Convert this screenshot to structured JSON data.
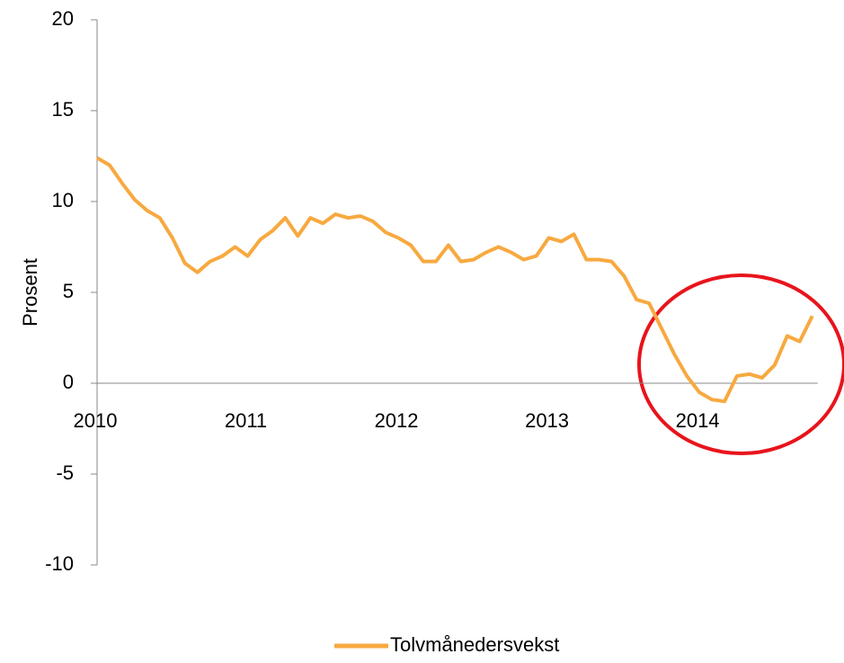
{
  "chart_data": {
    "type": "line",
    "ylabel": "Prosent",
    "categories": [
      "2010",
      null,
      null,
      null,
      null,
      null,
      null,
      null,
      null,
      null,
      null,
      null,
      "2011",
      null,
      null,
      null,
      null,
      null,
      null,
      null,
      null,
      null,
      null,
      null,
      "2012",
      null,
      null,
      null,
      null,
      null,
      null,
      null,
      null,
      null,
      null,
      null,
      "2013",
      null,
      null,
      null,
      null,
      null,
      null,
      null,
      null,
      null,
      null,
      null,
      "2014",
      null,
      null,
      null,
      null,
      null,
      null,
      null,
      null,
      null
    ],
    "series": [
      {
        "name": "Tolvmånedersvekst",
        "color": "#f7a940",
        "values": [
          12.4,
          12.0,
          11.0,
          10.1,
          9.5,
          9.1,
          8.0,
          6.6,
          6.1,
          6.7,
          7.0,
          7.5,
          7.0,
          7.9,
          8.4,
          9.1,
          8.1,
          9.1,
          8.8,
          9.3,
          9.1,
          9.2,
          8.9,
          8.3,
          8.0,
          7.6,
          6.7,
          6.7,
          7.6,
          6.7,
          6.8,
          7.2,
          7.5,
          7.2,
          6.8,
          7.0,
          8.0,
          7.8,
          8.2,
          6.8,
          6.8,
          6.7,
          5.9,
          4.6,
          4.4,
          3.0,
          1.6,
          0.4,
          -0.5,
          -0.9,
          -1.0,
          0.4,
          0.5,
          0.3,
          1.0,
          2.6,
          2.3,
          3.7
        ]
      }
    ],
    "ylim": [
      -10,
      20
    ],
    "yticks": [
      -10,
      -5,
      0,
      5,
      10,
      15,
      20
    ],
    "legend": "bottom"
  }
}
